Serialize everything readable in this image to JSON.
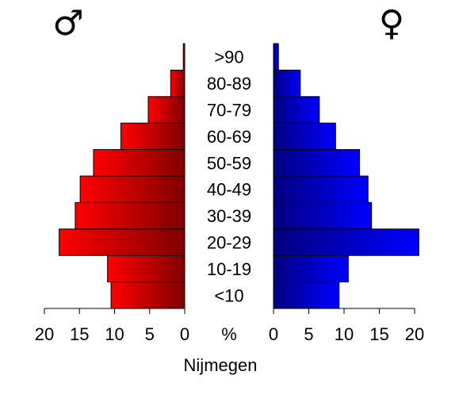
{
  "chart_data": {
    "type": "bar",
    "categories": [
      "<10",
      "10-19",
      "20-29",
      "30-39",
      "40-49",
      "50-59",
      "60-69",
      "70-79",
      "80-89",
      ">90"
    ],
    "series": [
      {
        "name": "♂",
        "values": [
          10.5,
          11.0,
          17.9,
          15.6,
          14.9,
          13.0,
          9.1,
          5.2,
          2.0,
          0.2
        ]
      },
      {
        "name": "♀",
        "values": [
          9.3,
          10.6,
          20.6,
          13.9,
          13.4,
          12.2,
          8.8,
          6.5,
          3.8,
          0.7
        ]
      }
    ],
    "xlim": [
      0,
      20
    ],
    "male_ticks": [
      "20",
      "15",
      "10",
      "5",
      "0"
    ],
    "female_ticks": [
      "0",
      "5",
      "10",
      "15",
      "20"
    ],
    "unit_label": "%",
    "male_symbol": "♂",
    "female_symbol": "♀",
    "xlabel": "Nijmegen",
    "colors": {
      "male_light": "#ff0000",
      "male_dark": "#800000",
      "female_dark": "#00007f",
      "female_light": "#0000ff"
    }
  }
}
